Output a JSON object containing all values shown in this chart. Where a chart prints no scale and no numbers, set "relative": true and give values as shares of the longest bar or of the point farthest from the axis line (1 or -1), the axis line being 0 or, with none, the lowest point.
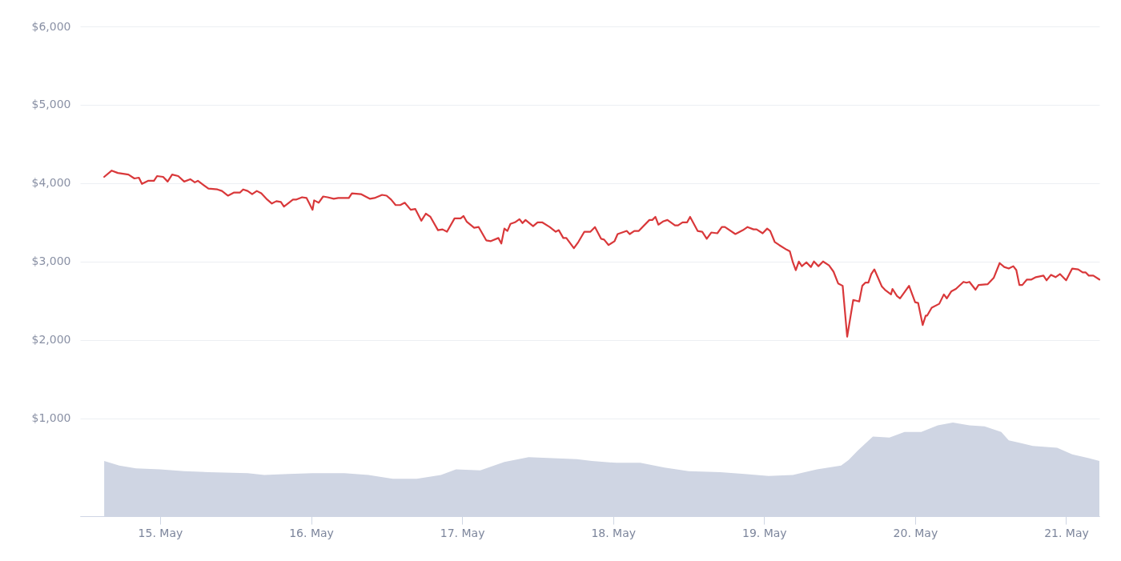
{
  "chart_data": [
    {
      "type": "line",
      "xlim": [
        "--05-14T11:17",
        "--05-21T05:17"
      ],
      "xticks": [
        {
          "value": "--05-15T00:00",
          "label": "15. May"
        },
        {
          "value": "--05-16T00:00",
          "label": "16. May"
        },
        {
          "value": "--05-17T00:00",
          "label": "17. May"
        },
        {
          "value": "--05-18T00:00",
          "label": "18. May"
        },
        {
          "value": "--05-19T00:00",
          "label": "19. May"
        },
        {
          "value": "--05-20T00:00",
          "label": "20. May"
        },
        {
          "value": "--05-21T00:00",
          "label": "21. May"
        }
      ],
      "ylim": [
        -250,
        6000
      ],
      "yticks": [
        {
          "value": 1000,
          "label": "$1,000"
        },
        {
          "value": 2000,
          "label": "$2,000"
        },
        {
          "value": 3000,
          "label": "$3,000"
        },
        {
          "value": 4000,
          "label": "$4,000"
        },
        {
          "value": 5000,
          "label": "$5,000"
        },
        {
          "value": 6000,
          "label": "$6,000"
        }
      ],
      "grid": "y",
      "x": [
        "--05-14T15:07",
        "--05-14T16:19",
        "--05-14T17:17",
        "--05-14T18:58",
        "--05-14T19:55",
        "--05-14T20:38",
        "--05-14T21:07",
        "--05-14T22:05",
        "--05-14T23:02",
        "--05-14T23:31",
        "--05-15T00:29",
        "--05-15T01:12",
        "--05-15T01:55",
        "--05-15T02:53",
        "--05-15T03:50",
        "--05-15T04:48",
        "--05-15T05:31",
        "--05-15T06:00",
        "--05-15T07:41",
        "--05-15T09:07",
        "--05-15T09:50",
        "--05-15T10:48",
        "--05-15T11:46",
        "--05-15T12:43",
        "--05-15T13:12",
        "--05-15T13:55",
        "--05-15T14:38",
        "--05-15T15:22",
        "--05-15T16:05",
        "--05-15T17:02",
        "--05-15T17:46",
        "--05-15T18:29",
        "--05-15T19:12",
        "--05-15T19:41",
        "--05-15T21:07",
        "--05-15T21:36",
        "--05-15T22:34",
        "--05-15T23:17",
        "--05-16T00:14",
        "--05-16T00:29",
        "--05-16T01:12",
        "--05-16T01:55",
        "--05-16T02:38",
        "--05-16T03:36",
        "--05-16T04:19",
        "--05-16T06:00",
        "--05-16T06:29",
        "--05-16T07:55",
        "--05-16T09:22",
        "--05-16T10:05",
        "--05-16T11:17",
        "--05-16T12:00",
        "--05-16T12:43",
        "--05-16T13:26",
        "--05-16T14:10",
        "--05-16T14:53",
        "--05-16T15:50",
        "--05-16T16:34",
        "--05-16T17:31",
        "--05-16T18:14",
        "--05-16T18:58",
        "--05-16T20:10",
        "--05-16T20:53",
        "--05-16T21:36",
        "--05-16T22:48",
        "--05-16T23:46",
        "--05-17T00:14",
        "--05-17T00:43",
        "--05-17T01:55",
        "--05-17T02:38",
        "--05-17T03:50",
        "--05-17T04:34",
        "--05-17T05:46",
        "--05-17T06:14",
        "--05-17T06:43",
        "--05-17T07:12",
        "--05-17T07:41",
        "--05-17T08:24",
        "--05-17T09:07",
        "--05-17T09:36",
        "--05-17T10:05",
        "--05-17T11:17",
        "--05-17T12:00",
        "--05-17T12:43",
        "--05-17T13:55",
        "--05-17T14:53",
        "--05-17T15:22",
        "--05-17T16:05",
        "--05-17T16:34",
        "--05-17T17:46",
        "--05-17T18:29",
        "--05-17T19:26",
        "--05-17T20:24",
        "--05-17T21:07",
        "--05-17T22:05",
        "--05-17T22:34",
        "--05-17T23:17",
        "--05-18T00:14",
        "--05-18T00:43",
        "--05-18T02:10",
        "--05-18T02:38",
        "--05-18T03:22",
        "--05-18T04:05",
        "--05-18T05:46",
        "--05-18T06:14",
        "--05-18T06:43",
        "--05-18T07:12",
        "--05-18T07:55",
        "--05-18T08:38",
        "--05-18T09:50",
        "--05-18T10:19",
        "--05-18T11:02",
        "--05-18T11:46",
        "--05-18T12:14",
        "--05-18T13:26",
        "--05-18T14:10",
        "--05-18T14:53",
        "--05-18T15:36",
        "--05-18T16:34",
        "--05-18T17:17",
        "--05-18T17:46",
        "--05-18T19:26",
        "--05-18T20:38",
        "--05-18T21:22",
        "--05-18T22:19",
        "--05-18T22:48",
        "--05-18T23:46",
        "--05-19T00:29",
        "--05-19T00:58",
        "--05-19T01:41",
        "--05-19T02:24",
        "--05-19T03:36",
        "--05-19T04:05",
        "--05-19T04:34",
        "--05-19T05:02",
        "--05-19T05:31",
        "--05-19T06:00",
        "--05-19T06:43",
        "--05-19T07:26",
        "--05-19T07:55",
        "--05-19T08:38",
        "--05-19T09:22",
        "--05-19T10:19",
        "--05-19T11:02",
        "--05-19T11:46",
        "--05-19T12:29",
        "--05-19T13:12",
        "--05-19T14:10",
        "--05-19T15:07",
        "--05-19T15:36",
        "--05-19T16:05",
        "--05-19T16:34",
        "--05-19T17:02",
        "--05-19T17:31",
        "--05-19T18:43",
        "--05-19T19:12",
        "--05-19T20:10",
        "--05-19T20:24",
        "--05-19T21:07",
        "--05-19T21:36",
        "--05-19T23:02",
        "--05-20T00:00",
        "--05-20T00:29",
        "--05-20T01:12",
        "--05-20T01:41",
        "--05-20T01:55",
        "--05-20T02:38",
        "--05-20T03:50",
        "--05-20T04:34",
        "--05-20T05:02",
        "--05-20T05:46",
        "--05-20T06:29",
        "--05-20T07:41",
        "--05-20T08:10",
        "--05-20T08:38",
        "--05-20T09:36",
        "--05-20T10:05",
        "--05-20T11:31",
        "--05-20T12:29",
        "--05-20T13:26",
        "--05-20T14:10",
        "--05-20T14:53",
        "--05-20T15:36",
        "--05-20T16:05",
        "--05-20T16:34",
        "--05-20T17:02",
        "--05-20T17:46",
        "--05-20T18:29",
        "--05-20T19:12",
        "--05-20T20:24",
        "--05-20T20:53",
        "--05-20T21:36",
        "--05-20T22:19",
        "--05-20T23:02",
        "--05-21T00:00",
        "--05-21T00:58",
        "--05-21T01:55",
        "--05-21T02:38",
        "--05-21T03:07",
        "--05-21T03:36",
        "--05-21T04:19",
        "--05-21T05:17"
      ],
      "series": [
        {
          "color": "#d9383a",
          "values": [
            4080,
            4160,
            4130,
            4110,
            4060,
            4070,
            3990,
            4030,
            4030,
            4090,
            4080,
            4020,
            4110,
            4090,
            4020,
            4050,
            4010,
            4030,
            3930,
            3920,
            3900,
            3840,
            3880,
            3880,
            3920,
            3900,
            3860,
            3900,
            3870,
            3790,
            3740,
            3770,
            3760,
            3700,
            3790,
            3790,
            3820,
            3810,
            3660,
            3780,
            3750,
            3830,
            3820,
            3800,
            3810,
            3810,
            3870,
            3860,
            3800,
            3810,
            3850,
            3840,
            3790,
            3720,
            3720,
            3750,
            3660,
            3670,
            3520,
            3610,
            3570,
            3400,
            3410,
            3380,
            3550,
            3550,
            3580,
            3510,
            3430,
            3440,
            3270,
            3260,
            3300,
            3230,
            3420,
            3390,
            3480,
            3500,
            3540,
            3490,
            3530,
            3450,
            3500,
            3500,
            3440,
            3380,
            3400,
            3300,
            3300,
            3170,
            3250,
            3380,
            3380,
            3440,
            3290,
            3280,
            3210,
            3260,
            3350,
            3390,
            3350,
            3390,
            3390,
            3530,
            3530,
            3570,
            3470,
            3510,
            3530,
            3460,
            3460,
            3500,
            3500,
            3570,
            3390,
            3380,
            3290,
            3370,
            3360,
            3440,
            3440,
            3350,
            3400,
            3440,
            3410,
            3410,
            3360,
            3420,
            3390,
            3250,
            3210,
            3150,
            3130,
            2990,
            2890,
            3000,
            2940,
            2990,
            2930,
            3000,
            2940,
            3000,
            2950,
            2870,
            2720,
            2690,
            2040,
            2510,
            2490,
            2690,
            2730,
            2730,
            2840,
            2900,
            2680,
            2640,
            2580,
            2650,
            2560,
            2530,
            2690,
            2480,
            2470,
            2190,
            2310,
            2310,
            2410,
            2460,
            2580,
            2530,
            2620,
            2650,
            2740,
            2730,
            2740,
            2640,
            2700,
            2710,
            2790,
            2980,
            2930,
            2910,
            2940,
            2890,
            2700,
            2700,
            2770,
            2770,
            2800,
            2820,
            2760,
            2830,
            2800,
            2840,
            2760,
            2910,
            2900,
            2860,
            2860,
            2820,
            2820,
            2770
          ]
        }
      ]
    },
    {
      "type": "area",
      "relative": true,
      "tick_labels": false,
      "xlim": [
        "--05-14T11:17",
        "--05-21T05:17"
      ],
      "color": "#cfd5e3",
      "x": [
        "--05-14T15:07",
        "--05-14T17:31",
        "--05-14T20:10",
        "--05-15T00:00",
        "--05-15T03:50",
        "--05-15T07:41",
        "--05-15T13:55",
        "--05-15T16:34",
        "--05-15T20:24",
        "--05-16T00:14",
        "--05-16T05:17",
        "--05-16T09:07",
        "--05-16T12:58",
        "--05-16T16:48",
        "--05-16T20:38",
        "--05-16T23:02",
        "--05-17T02:53",
        "--05-17T06:43",
        "--05-17T10:34",
        "--05-17T14:24",
        "--05-17T18:14",
        "--05-17T20:38",
        "--05-18T00:29",
        "--05-18T04:19",
        "--05-18T08:10",
        "--05-18T12:00",
        "--05-18T17:02",
        "--05-18T20:53",
        "--05-19T00:43",
        "--05-19T04:34",
        "--05-19T08:24",
        "--05-19T12:14",
        "--05-19T13:26",
        "--05-19T14:53",
        "--05-19T17:17",
        "--05-19T19:55",
        "--05-19T22:19",
        "--05-20T00:58",
        "--05-20T03:36",
        "--05-20T06:00",
        "--05-20T08:38",
        "--05-20T11:02",
        "--05-20T13:41",
        "--05-20T14:53",
        "--05-20T18:43",
        "--05-20T22:34",
        "--05-21T00:58",
        "--05-21T03:36",
        "--05-21T05:17"
      ],
      "values": [
        0.59,
        0.54,
        0.51,
        0.5,
        0.48,
        0.47,
        0.46,
        0.44,
        0.45,
        0.46,
        0.46,
        0.44,
        0.4,
        0.4,
        0.44,
        0.5,
        0.49,
        0.58,
        0.63,
        0.62,
        0.61,
        0.59,
        0.57,
        0.57,
        0.52,
        0.48,
        0.47,
        0.45,
        0.43,
        0.44,
        0.5,
        0.54,
        0.6,
        0.7,
        0.85,
        0.84,
        0.9,
        0.9,
        0.97,
        1,
        0.97,
        0.96,
        0.9,
        0.81,
        0.75,
        0.73,
        0.66,
        0.62,
        0.59
      ]
    }
  ]
}
